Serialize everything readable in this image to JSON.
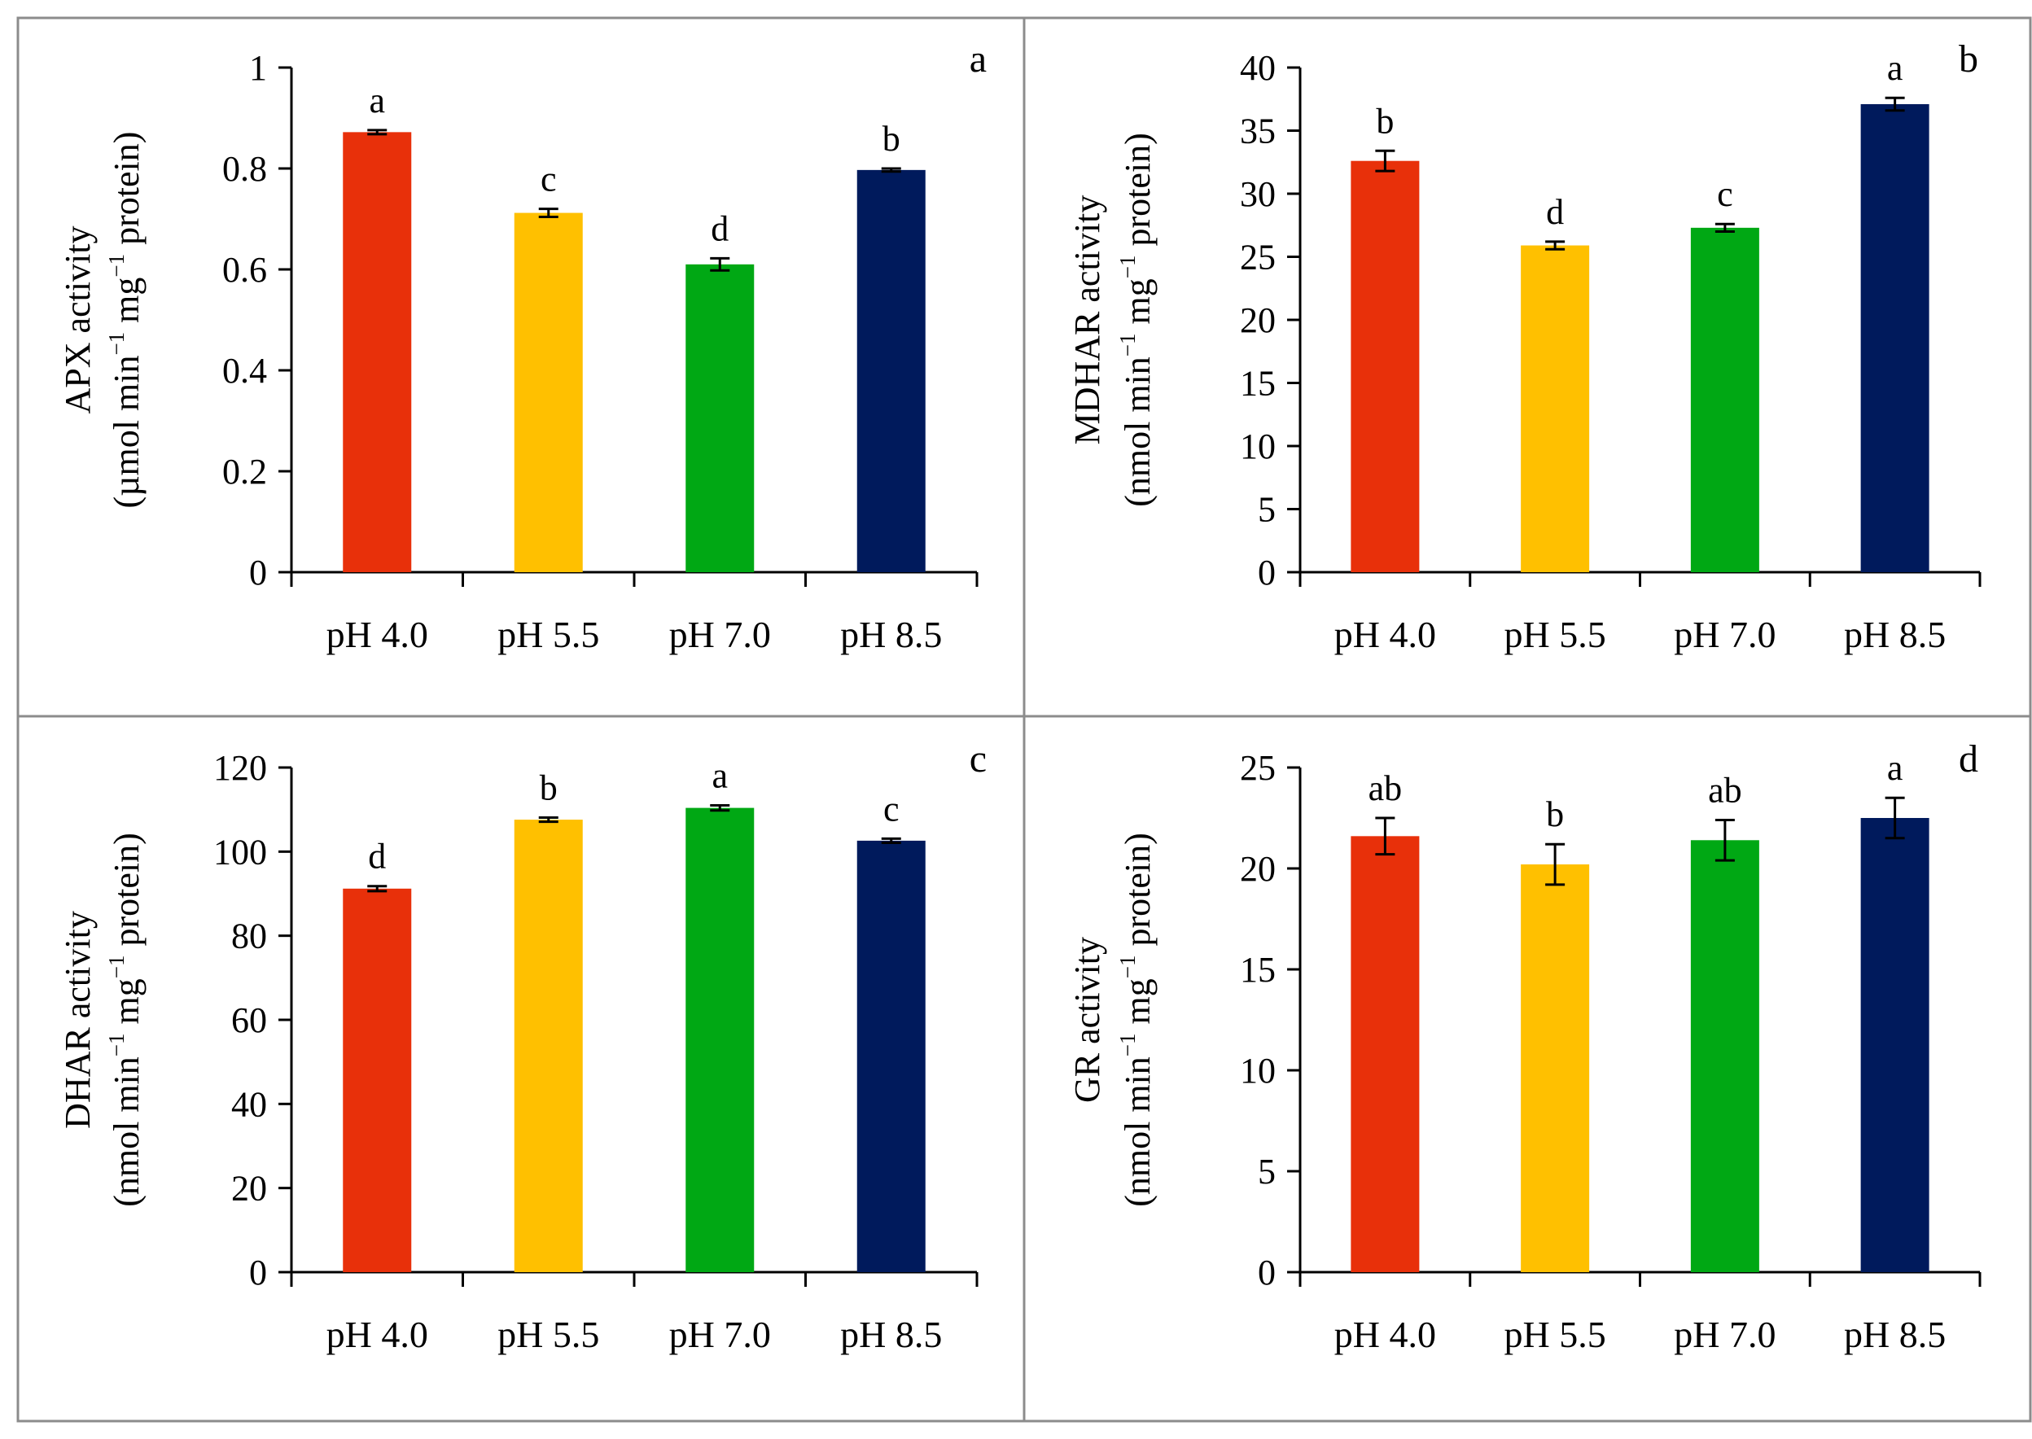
{
  "colors": {
    "pH 4.0": "#e8300a",
    "pH 5.5": "#ffc000",
    "pH 7.0": "#00a814",
    "pH 8.5": "#001a5c",
    "border": "#8c8c8c",
    "axis": "#000000"
  },
  "chart_data": [
    {
      "type": "bar",
      "panel": "a",
      "ylabel_line1": "APX activity",
      "ylabel_line2": {
        "pre": "(µmol min",
        "sup1": "−1",
        "mid": " mg",
        "sup2": "−1",
        "post": " protein)"
      },
      "categories": [
        "pH 4.0",
        "pH 5.5",
        "pH 7.0",
        "pH 8.5"
      ],
      "values": [
        0.872,
        0.712,
        0.61,
        0.797
      ],
      "errors": [
        0.004,
        0.008,
        0.012,
        0.003
      ],
      "letters": [
        "a",
        "c",
        "d",
        "b"
      ],
      "ylim": [
        0,
        1
      ],
      "ytick_values": [
        0,
        0.2,
        0.4,
        0.6,
        0.8,
        1
      ],
      "ytick_labels": [
        "0",
        "0.2",
        "0.4",
        "0.6",
        "0.8",
        "1"
      ]
    },
    {
      "type": "bar",
      "panel": "b",
      "ylabel_line1": "MDHAR activity",
      "ylabel_line2": {
        "pre": "(nmol min",
        "sup1": "−1",
        "mid": " mg",
        "sup2": "−1",
        "post": " protein)"
      },
      "categories": [
        "pH 4.0",
        "pH 5.5",
        "pH 7.0",
        "pH 8.5"
      ],
      "values": [
        32.6,
        25.9,
        27.3,
        37.1
      ],
      "errors": [
        0.8,
        0.3,
        0.3,
        0.5
      ],
      "letters": [
        "b",
        "d",
        "c",
        "a"
      ],
      "ylim": [
        0,
        40
      ],
      "ytick_values": [
        0,
        5,
        10,
        15,
        20,
        25,
        30,
        35,
        40
      ],
      "ytick_labels": [
        "0",
        "5",
        "10",
        "15",
        "20",
        "25",
        "30",
        "35",
        "40"
      ]
    },
    {
      "type": "bar",
      "panel": "c",
      "ylabel_line1": "DHAR activity",
      "ylabel_line2": {
        "pre": "(nmol min",
        "sup1": "−1",
        "mid": " mg",
        "sup2": "−1",
        "post": " protein)"
      },
      "categories": [
        "pH 4.0",
        "pH 5.5",
        "pH 7.0",
        "pH 8.5"
      ],
      "values": [
        91.2,
        107.6,
        110.4,
        102.6
      ],
      "errors": [
        0.6,
        0.5,
        0.6,
        0.5
      ],
      "letters": [
        "d",
        "b",
        "a",
        "c"
      ],
      "ylim": [
        0,
        120
      ],
      "ytick_values": [
        0,
        20,
        40,
        60,
        80,
        100,
        120
      ],
      "ytick_labels": [
        "0",
        "20",
        "40",
        "60",
        "80",
        "100",
        "120"
      ]
    },
    {
      "type": "bar",
      "panel": "d",
      "ylabel_line1": "GR activity",
      "ylabel_line2": {
        "pre": "(nmol min",
        "sup1": "−1",
        "mid": " mg",
        "sup2": "−1",
        "post": " protein)"
      },
      "categories": [
        "pH 4.0",
        "pH 5.5",
        "pH 7.0",
        "pH 8.5"
      ],
      "values": [
        21.6,
        20.2,
        21.4,
        22.5
      ],
      "errors": [
        0.9,
        1.0,
        1.0,
        1.0
      ],
      "letters": [
        "ab",
        "b",
        "ab",
        "a"
      ],
      "ylim": [
        0,
        25
      ],
      "ytick_values": [
        0,
        5,
        10,
        15,
        20,
        25
      ],
      "ytick_labels": [
        "0",
        "5",
        "10",
        "15",
        "20",
        "25"
      ]
    }
  ]
}
